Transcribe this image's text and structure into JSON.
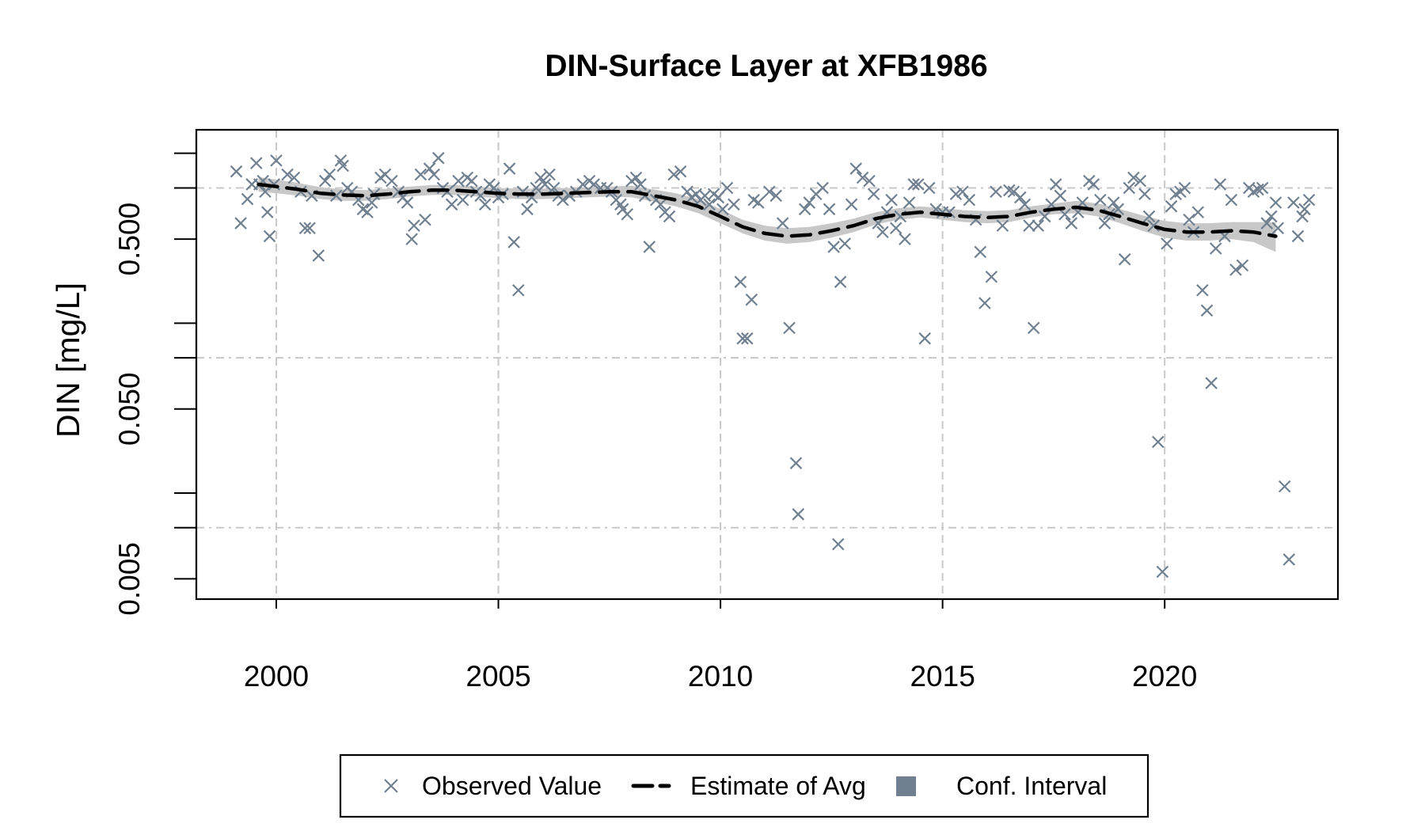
{
  "chart_data": {
    "type": "scatter",
    "title": "DIN-Surface Layer at XFB1986",
    "xlabel": "",
    "ylabel": "DIN [mg/L]",
    "y_scale": "log",
    "xlim": [
      1998.2,
      2023.9
    ],
    "ylim": [
      0.0038,
      2.2
    ],
    "x_ticks": [
      2000,
      2005,
      2010,
      2015,
      2020
    ],
    "x_tick_labels": [
      "2000",
      "2005",
      "2010",
      "2015",
      "2020"
    ],
    "y_ticks": [
      0.005,
      0.05,
      0.5
    ],
    "y_tick_labels": [
      "0.005",
      "0.050",
      "0.500"
    ],
    "y_minor_ticks": [
      0.016,
      0.16,
      1.6
    ],
    "y_extra_ticks": [
      0.01,
      0.1,
      1.0
    ],
    "grid": true,
    "legend_position": "bottom",
    "colors": {
      "observed": "#708090",
      "estimate": "#000000",
      "ci": "#c8c8c8",
      "ci_legend": "#708090",
      "grid": "#c8c8c8"
    },
    "legend": [
      {
        "label": "Observed Value",
        "marker": "x-icon"
      },
      {
        "label": "Estimate of Avg",
        "marker": "dashed-line"
      },
      {
        "label": "Conf. Interval",
        "marker": "filled-square"
      }
    ],
    "series": [
      {
        "name": "Observed Value",
        "points": [
          [
            1999.1,
            1.25
          ],
          [
            1999.2,
            0.62
          ],
          [
            1999.35,
            0.86
          ],
          [
            1999.45,
            1.05
          ],
          [
            1999.55,
            1.4
          ],
          [
            1999.62,
            1.05
          ],
          [
            1999.7,
            1.1
          ],
          [
            1999.75,
            0.95
          ],
          [
            1999.8,
            0.72
          ],
          [
            1999.85,
            0.52
          ],
          [
            1999.95,
            1.05
          ],
          [
            2000.0,
            1.45
          ],
          [
            2000.25,
            1.2
          ],
          [
            2000.4,
            1.15
          ],
          [
            2000.55,
            0.95
          ],
          [
            2000.65,
            0.58
          ],
          [
            2000.75,
            0.58
          ],
          [
            2000.8,
            0.9
          ],
          [
            2000.95,
            0.4
          ],
          [
            2001.1,
            1.1
          ],
          [
            2001.2,
            1.2
          ],
          [
            2001.35,
            0.9
          ],
          [
            2001.45,
            1.45
          ],
          [
            2001.5,
            1.35
          ],
          [
            2001.6,
            1.0
          ],
          [
            2001.7,
            0.95
          ],
          [
            2001.85,
            0.85
          ],
          [
            2001.95,
            0.75
          ],
          [
            2002.05,
            0.72
          ],
          [
            2002.15,
            0.82
          ],
          [
            2002.2,
            0.92
          ],
          [
            2002.35,
            1.15
          ],
          [
            2002.45,
            1.2
          ],
          [
            2002.6,
            1.1
          ],
          [
            2002.75,
            0.95
          ],
          [
            2002.85,
            0.88
          ],
          [
            2002.95,
            0.82
          ],
          [
            2003.05,
            0.5
          ],
          [
            2003.1,
            0.6
          ],
          [
            2003.25,
            1.2
          ],
          [
            2003.35,
            0.65
          ],
          [
            2003.45,
            1.3
          ],
          [
            2003.55,
            1.2
          ],
          [
            2003.65,
            1.5
          ],
          [
            2003.75,
            1.0
          ],
          [
            2003.85,
            0.95
          ],
          [
            2003.95,
            0.8
          ],
          [
            2004.1,
            1.1
          ],
          [
            2004.2,
            0.85
          ],
          [
            2004.3,
            1.15
          ],
          [
            2004.4,
            1.1
          ],
          [
            2004.5,
            0.95
          ],
          [
            2004.6,
            0.9
          ],
          [
            2004.7,
            0.8
          ],
          [
            2004.8,
            1.05
          ],
          [
            2004.9,
            1.0
          ],
          [
            2005.0,
            0.88
          ],
          [
            2005.1,
            0.92
          ],
          [
            2005.25,
            1.3
          ],
          [
            2005.35,
            0.48
          ],
          [
            2005.45,
            0.25
          ],
          [
            2005.55,
            0.95
          ],
          [
            2005.65,
            0.75
          ],
          [
            2005.75,
            0.88
          ],
          [
            2005.85,
            1.0
          ],
          [
            2005.95,
            1.15
          ],
          [
            2006.05,
            1.05
          ],
          [
            2006.15,
            1.2
          ],
          [
            2006.25,
            1.0
          ],
          [
            2006.35,
            0.9
          ],
          [
            2006.45,
            0.85
          ],
          [
            2006.6,
            0.9
          ],
          [
            2006.75,
            0.95
          ],
          [
            2006.9,
            1.05
          ],
          [
            2007.05,
            1.1
          ],
          [
            2007.15,
            1.05
          ],
          [
            2007.3,
            1.0
          ],
          [
            2007.45,
            1.0
          ],
          [
            2007.55,
            0.95
          ],
          [
            2007.65,
            0.85
          ],
          [
            2007.75,
            0.8
          ],
          [
            2007.8,
            0.75
          ],
          [
            2007.9,
            0.7
          ],
          [
            2008.0,
            1.1
          ],
          [
            2008.1,
            1.15
          ],
          [
            2008.2,
            1.05
          ],
          [
            2008.3,
            0.9
          ],
          [
            2008.4,
            0.45
          ],
          [
            2008.55,
            0.85
          ],
          [
            2008.65,
            0.8
          ],
          [
            2008.75,
            0.72
          ],
          [
            2008.85,
            0.68
          ],
          [
            2008.95,
            1.2
          ],
          [
            2009.1,
            1.25
          ],
          [
            2009.25,
            0.95
          ],
          [
            2009.35,
            0.88
          ],
          [
            2009.45,
            0.92
          ],
          [
            2009.55,
            0.85
          ],
          [
            2009.65,
            0.9
          ],
          [
            2009.75,
            0.8
          ],
          [
            2009.85,
            0.92
          ],
          [
            2009.95,
            0.88
          ],
          [
            2010.05,
            0.75
          ],
          [
            2010.15,
            1.0
          ],
          [
            2010.3,
            0.8
          ],
          [
            2010.45,
            0.28
          ],
          [
            2010.5,
            0.13
          ],
          [
            2010.6,
            0.13
          ],
          [
            2010.7,
            0.22
          ],
          [
            2010.75,
            0.85
          ],
          [
            2010.85,
            0.82
          ],
          [
            2011.1,
            0.95
          ],
          [
            2011.25,
            0.9
          ],
          [
            2011.4,
            0.62
          ],
          [
            2011.55,
            0.15
          ],
          [
            2011.7,
            0.024
          ],
          [
            2011.75,
            0.012
          ],
          [
            2011.9,
            0.75
          ],
          [
            2012.0,
            0.82
          ],
          [
            2012.15,
            0.92
          ],
          [
            2012.3,
            1.0
          ],
          [
            2012.45,
            0.75
          ],
          [
            2012.55,
            0.45
          ],
          [
            2012.65,
            0.008
          ],
          [
            2012.7,
            0.28
          ],
          [
            2012.8,
            0.47
          ],
          [
            2012.95,
            0.8
          ],
          [
            2013.05,
            1.3
          ],
          [
            2013.2,
            1.15
          ],
          [
            2013.35,
            1.1
          ],
          [
            2013.45,
            0.92
          ],
          [
            2013.55,
            0.62
          ],
          [
            2013.65,
            0.55
          ],
          [
            2013.75,
            0.72
          ],
          [
            2013.85,
            0.85
          ],
          [
            2013.95,
            0.58
          ],
          [
            2014.05,
            0.68
          ],
          [
            2014.15,
            0.5
          ],
          [
            2014.25,
            0.82
          ],
          [
            2014.35,
            1.05
          ],
          [
            2014.45,
            1.05
          ],
          [
            2014.6,
            0.13
          ],
          [
            2014.7,
            1.0
          ],
          [
            2014.85,
            0.75
          ],
          [
            2015.0,
            0.72
          ],
          [
            2015.15,
            0.72
          ],
          [
            2015.3,
            0.92
          ],
          [
            2015.45,
            0.95
          ],
          [
            2015.6,
            0.85
          ],
          [
            2015.75,
            0.65
          ],
          [
            2015.85,
            0.42
          ],
          [
            2015.95,
            0.21
          ],
          [
            2016.1,
            0.3
          ],
          [
            2016.2,
            0.95
          ],
          [
            2016.35,
            0.6
          ],
          [
            2016.5,
            0.97
          ],
          [
            2016.6,
            0.95
          ],
          [
            2016.75,
            0.88
          ],
          [
            2016.85,
            0.8
          ],
          [
            2016.95,
            0.6
          ],
          [
            2017.05,
            0.15
          ],
          [
            2017.15,
            0.6
          ],
          [
            2017.3,
            0.68
          ],
          [
            2017.45,
            0.8
          ],
          [
            2017.55,
            1.05
          ],
          [
            2017.65,
            0.9
          ],
          [
            2017.75,
            0.7
          ],
          [
            2017.9,
            0.62
          ],
          [
            2018.05,
            0.72
          ],
          [
            2018.15,
            0.82
          ],
          [
            2018.3,
            1.1
          ],
          [
            2018.4,
            1.05
          ],
          [
            2018.55,
            0.85
          ],
          [
            2018.65,
            0.62
          ],
          [
            2018.75,
            0.7
          ],
          [
            2018.85,
            0.82
          ],
          [
            2018.95,
            0.75
          ],
          [
            2019.1,
            0.38
          ],
          [
            2019.2,
            1.0
          ],
          [
            2019.3,
            1.15
          ],
          [
            2019.45,
            1.1
          ],
          [
            2019.55,
            0.92
          ],
          [
            2019.65,
            0.68
          ],
          [
            2019.75,
            0.6
          ],
          [
            2019.85,
            0.032
          ],
          [
            2019.95,
            0.0055
          ],
          [
            2020.05,
            0.47
          ],
          [
            2020.15,
            0.78
          ],
          [
            2020.25,
            0.92
          ],
          [
            2020.35,
            0.95
          ],
          [
            2020.45,
            1.0
          ],
          [
            2020.55,
            0.65
          ],
          [
            2020.65,
            0.55
          ],
          [
            2020.75,
            0.72
          ],
          [
            2020.85,
            0.25
          ],
          [
            2020.95,
            0.19
          ],
          [
            2021.05,
            0.071
          ],
          [
            2021.15,
            0.44
          ],
          [
            2021.25,
            1.05
          ],
          [
            2021.35,
            0.52
          ],
          [
            2021.5,
            0.85
          ],
          [
            2021.6,
            0.33
          ],
          [
            2021.75,
            0.35
          ],
          [
            2021.9,
            1.0
          ],
          [
            2022.0,
            0.95
          ],
          [
            2022.1,
            0.98
          ],
          [
            2022.2,
            1.0
          ],
          [
            2022.3,
            0.62
          ],
          [
            2022.4,
            0.68
          ],
          [
            2022.5,
            0.82
          ],
          [
            2022.55,
            0.58
          ],
          [
            2022.7,
            0.0175
          ],
          [
            2022.8,
            0.0065
          ],
          [
            2022.9,
            0.82
          ],
          [
            2023.0,
            0.52
          ],
          [
            2023.1,
            0.68
          ],
          [
            2023.15,
            0.75
          ],
          [
            2023.25,
            0.85
          ]
        ]
      },
      {
        "name": "Estimate of Avg",
        "x": [
          1999.6,
          2000.0,
          2000.5,
          2001.0,
          2001.5,
          2002.0,
          2002.5,
          2003.0,
          2003.5,
          2004.0,
          2004.5,
          2005.0,
          2005.5,
          2006.0,
          2006.5,
          2007.0,
          2007.5,
          2008.0,
          2008.5,
          2009.0,
          2009.5,
          2010.0,
          2010.5,
          2011.0,
          2011.5,
          2012.0,
          2012.5,
          2013.0,
          2013.5,
          2014.0,
          2014.5,
          2015.0,
          2015.5,
          2016.0,
          2016.5,
          2017.0,
          2017.5,
          2018.0,
          2018.5,
          2019.0,
          2019.5,
          2020.0,
          2020.5,
          2021.0,
          2021.5,
          2022.0,
          2022.5
        ],
        "values": [
          1.05,
          1.02,
          0.98,
          0.93,
          0.91,
          0.9,
          0.92,
          0.95,
          0.97,
          0.97,
          0.95,
          0.93,
          0.92,
          0.92,
          0.93,
          0.94,
          0.95,
          0.95,
          0.9,
          0.85,
          0.78,
          0.68,
          0.59,
          0.54,
          0.52,
          0.53,
          0.56,
          0.6,
          0.66,
          0.7,
          0.72,
          0.7,
          0.68,
          0.67,
          0.68,
          0.72,
          0.75,
          0.77,
          0.74,
          0.68,
          0.62,
          0.57,
          0.55,
          0.55,
          0.56,
          0.55,
          0.52
        ]
      },
      {
        "name": "Conf. Interval",
        "x": [
          1999.6,
          2000.0,
          2000.5,
          2001.0,
          2001.5,
          2002.0,
          2002.5,
          2003.0,
          2003.5,
          2004.0,
          2004.5,
          2005.0,
          2005.5,
          2006.0,
          2006.5,
          2007.0,
          2007.5,
          2008.0,
          2008.5,
          2009.0,
          2009.5,
          2010.0,
          2010.5,
          2011.0,
          2011.5,
          2012.0,
          2012.5,
          2013.0,
          2013.5,
          2014.0,
          2014.5,
          2015.0,
          2015.5,
          2016.0,
          2016.5,
          2017.0,
          2017.5,
          2018.0,
          2018.5,
          2019.0,
          2019.5,
          2020.0,
          2020.5,
          2021.0,
          2021.5,
          2022.0,
          2022.5
        ],
        "lower": [
          0.95,
          0.93,
          0.9,
          0.86,
          0.84,
          0.84,
          0.86,
          0.89,
          0.91,
          0.91,
          0.89,
          0.87,
          0.86,
          0.86,
          0.87,
          0.88,
          0.89,
          0.88,
          0.83,
          0.78,
          0.71,
          0.62,
          0.54,
          0.49,
          0.47,
          0.48,
          0.51,
          0.55,
          0.61,
          0.65,
          0.67,
          0.65,
          0.63,
          0.62,
          0.63,
          0.67,
          0.7,
          0.71,
          0.68,
          0.62,
          0.56,
          0.51,
          0.49,
          0.49,
          0.5,
          0.48,
          0.42
        ],
        "upper": [
          1.16,
          1.12,
          1.07,
          1.01,
          0.98,
          0.97,
          0.99,
          1.02,
          1.04,
          1.04,
          1.02,
          1.0,
          0.99,
          0.99,
          1.0,
          1.01,
          1.02,
          1.03,
          0.98,
          0.93,
          0.86,
          0.75,
          0.65,
          0.6,
          0.58,
          0.59,
          0.62,
          0.66,
          0.72,
          0.76,
          0.78,
          0.76,
          0.74,
          0.73,
          0.74,
          0.78,
          0.81,
          0.84,
          0.81,
          0.75,
          0.69,
          0.64,
          0.62,
          0.62,
          0.63,
          0.63,
          0.63
        ]
      }
    ]
  }
}
